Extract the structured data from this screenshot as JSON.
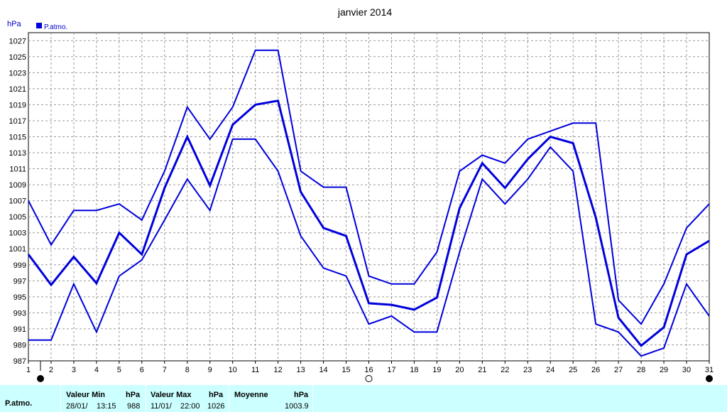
{
  "chart_data": {
    "type": "line",
    "title": "janvier 2014",
    "ylabel": "hPa",
    "legend": [
      "P.atmo."
    ],
    "ylim": [
      987,
      1028
    ],
    "yticks": [
      987,
      989,
      991,
      993,
      995,
      997,
      999,
      1001,
      1003,
      1005,
      1007,
      1009,
      1011,
      1013,
      1015,
      1017,
      1019,
      1021,
      1023,
      1025,
      1027
    ],
    "x": [
      1,
      2,
      3,
      4,
      5,
      6,
      7,
      8,
      9,
      10,
      11,
      12,
      13,
      14,
      15,
      16,
      17,
      18,
      19,
      20,
      21,
      22,
      23,
      24,
      25,
      26,
      27,
      28,
      29,
      30,
      31
    ],
    "series": [
      {
        "name": "P.atmo.",
        "role": "max",
        "values": [
          1007,
          1001.5,
          1005.8,
          1005.8,
          1006.6,
          1004.6,
          1010.7,
          1018.7,
          1014.7,
          1018.7,
          1025.8,
          1025.8,
          1010.7,
          1008.7,
          1008.7,
          997.6,
          996.6,
          996.6,
          1000.6,
          1010.7,
          1012.7,
          1011.7,
          1014.7,
          1015.7,
          1016.7,
          1016.7,
          994.6,
          991.6,
          996.6,
          1003.6,
          1006.6
        ]
      },
      {
        "name": "P.atmo.",
        "role": "avg",
        "values": [
          1000.3,
          996.5,
          1000,
          996.7,
          1003,
          1000.3,
          1008.6,
          1015,
          1008.9,
          1016.5,
          1019,
          1019.5,
          1008.1,
          1003.6,
          1002.6,
          994.2,
          994,
          993.4,
          994.9,
          1006.1,
          1011.7,
          1008.6,
          1012.2,
          1015,
          1014.2,
          1004.9,
          992.4,
          988.9,
          991.2,
          1000.3,
          1002
        ]
      },
      {
        "name": "P.atmo.",
        "role": "min",
        "values": [
          989.6,
          989.6,
          996.6,
          990.6,
          997.6,
          999.6,
          1004.6,
          1009.7,
          1005.8,
          1014.7,
          1014.7,
          1010.7,
          1002.6,
          998.6,
          997.6,
          991.6,
          992.6,
          990.6,
          990.6,
          1000.6,
          1009.7,
          1006.6,
          1009.7,
          1013.7,
          1010.7,
          991.6,
          990.6,
          987.6,
          988.6,
          996.6,
          992.6
        ]
      }
    ],
    "grid": true,
    "moon_markers": [
      {
        "day": 1,
        "phase": "new-moon-icon"
      },
      {
        "day": 16,
        "phase": "full-moon-icon"
      },
      {
        "day": 31,
        "phase": "new-moon-icon"
      }
    ]
  },
  "colors": {
    "series": "#0000dd",
    "grid": "#999999",
    "stats_bg": "#ccffff"
  },
  "stats": {
    "row_label": "P.atmo.",
    "min": {
      "label": "Valeur Min",
      "unit": "hPa",
      "date": "28/01/",
      "time": "13:15",
      "value": "988"
    },
    "max": {
      "label": "Valeur Max",
      "unit": "hPa",
      "date": "11/01/",
      "time": "22:00",
      "value": "1026"
    },
    "avg": {
      "label": "Moyenne",
      "unit": "hPa",
      "value": "1003.9"
    }
  }
}
